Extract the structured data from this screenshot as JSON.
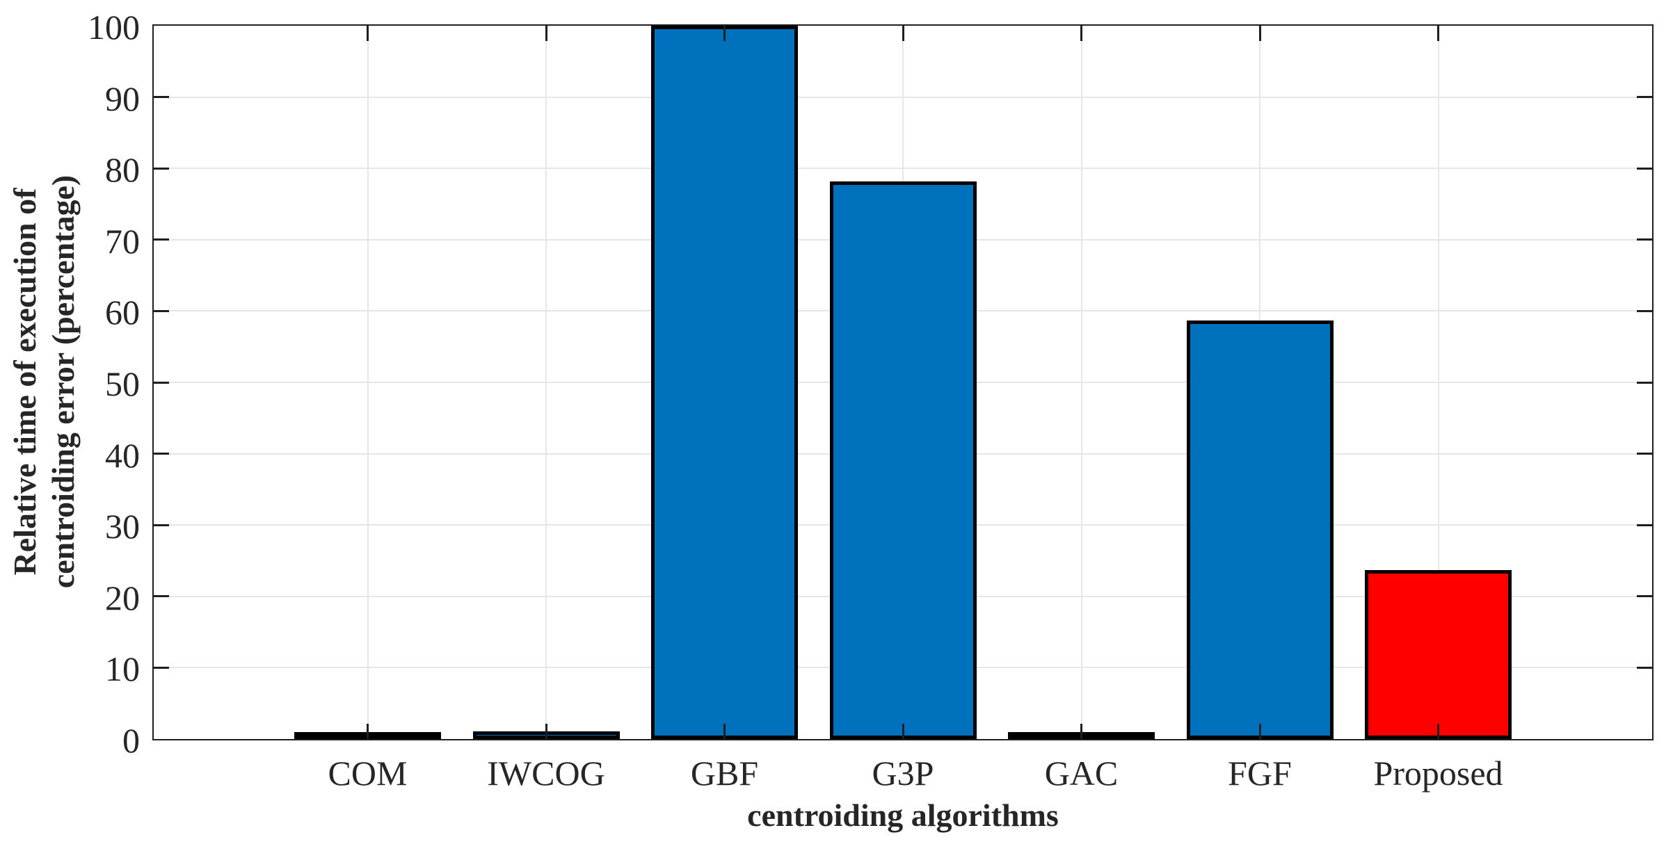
{
  "chart_data": {
    "type": "bar",
    "title": "",
    "xlabel": "centroiding algorithms",
    "ylabel": "Relative time of execution of centroiding error (percentage)",
    "ylabel_lines": [
      "Relative time of execution of",
      "centroiding error (percentage)"
    ],
    "categories": [
      "COM",
      "IWCOG",
      "GBF",
      "G3P",
      "GAC",
      "FGF",
      "Proposed"
    ],
    "values": [
      0.6,
      1.1,
      100,
      78.2,
      0.6,
      58.7,
      23.7
    ],
    "series": [
      {
        "name": "relative-execution-time",
        "values": [
          0.6,
          1.1,
          100,
          78.2,
          0.6,
          58.7,
          23.7
        ]
      }
    ],
    "bar_colors": [
      "#0072BD",
      "#0072BD",
      "#0072BD",
      "#0072BD",
      "#0072BD",
      "#0072BD",
      "#FF0000"
    ],
    "bar_edge_color": "#000000",
    "highlight_category": "Proposed",
    "ylim": [
      0,
      100
    ],
    "yticks": [
      0,
      10,
      20,
      30,
      40,
      50,
      60,
      70,
      80,
      90,
      100
    ],
    "ytick_labels": [
      "0",
      "10",
      "20",
      "30",
      "40",
      "50",
      "60",
      "70",
      "80",
      "90",
      "100"
    ],
    "grid": true,
    "grid_color": "#e6e6e6",
    "axis_color": "#1f1f1f",
    "background_color": "#ffffff",
    "legend_position": "none"
  }
}
